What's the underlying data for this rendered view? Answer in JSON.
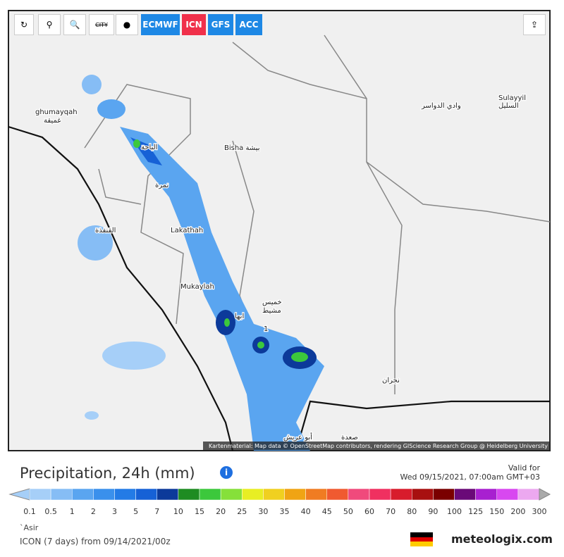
{
  "toolbar": {
    "city": "CITY",
    "models": [
      "ECMWF",
      "ICN",
      "GFS",
      "ACC"
    ]
  },
  "map": {
    "places": [
      "ghumayqah",
      "غميقة",
      "الباحة",
      "Bisha بيشة",
      "وادي الدواسر",
      "Sulayyil",
      "السليل",
      "نمرة",
      "القنفذة",
      "Lakathah",
      "Mukaylah",
      "خميس",
      "مشيط",
      "ابها",
      "1",
      "نجران",
      "أبو عريش",
      "صعدة"
    ],
    "attribution": "Kartenmaterial: Map data © OpenStreetMap contributors, rendering GIScience Research Group @ Heidelberg University"
  },
  "header": {
    "title": "Precipitation, 24h (mm)",
    "valid_label": "Valid for",
    "valid_time": "Wed 09/15/2021, 07:00am GMT+03"
  },
  "legend": [
    {
      "label": "0.1",
      "color": "#a6cff8"
    },
    {
      "label": "0.5",
      "color": "#86bdf5"
    },
    {
      "label": "1",
      "color": "#5aa5f0"
    },
    {
      "label": "2",
      "color": "#3a90ec"
    },
    {
      "label": "3",
      "color": "#237be6"
    },
    {
      "label": "5",
      "color": "#1661d6"
    },
    {
      "label": "7",
      "color": "#0c3a9a"
    },
    {
      "label": "10",
      "color": "#1e8c22"
    },
    {
      "label": "15",
      "color": "#3cc83c"
    },
    {
      "label": "20",
      "color": "#86e03a"
    },
    {
      "label": "25",
      "color": "#e8ee24"
    },
    {
      "label": "30",
      "color": "#f0d020"
    },
    {
      "label": "35",
      "color": "#f0a414"
    },
    {
      "label": "40",
      "color": "#f07c22"
    },
    {
      "label": "45",
      "color": "#f05a30"
    },
    {
      "label": "50",
      "color": "#f04a7c"
    },
    {
      "label": "60",
      "color": "#f03060"
    },
    {
      "label": "70",
      "color": "#d81c2c"
    },
    {
      "label": "80",
      "color": "#a81010"
    },
    {
      "label": "90",
      "color": "#7a0000"
    },
    {
      "label": "100",
      "color": "#6a0a78"
    },
    {
      "label": "125",
      "color": "#a820d0"
    },
    {
      "label": "150",
      "color": "#d848f0"
    },
    {
      "label": "200",
      "color": "#eca8f0"
    },
    {
      "label": "300",
      "color": "#f6e4f6"
    }
  ],
  "footer": {
    "region": "`Asir",
    "run": "ICON (7 days) from 09/14/2021/00z",
    "brand": "meteologix.com"
  }
}
